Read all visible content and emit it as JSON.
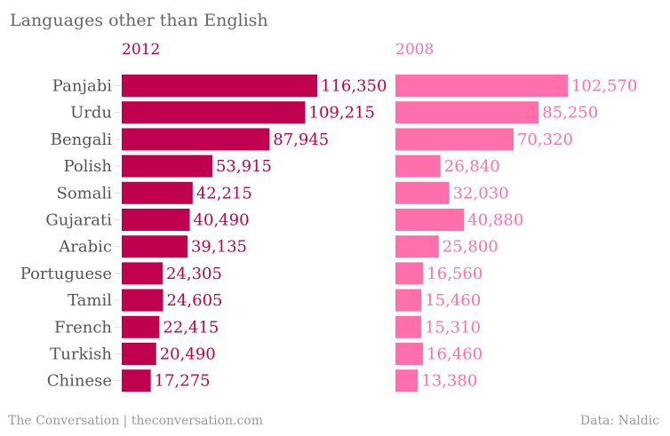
{
  "title": "Languages other than English",
  "footer": {
    "source_left": "The Conversation | theconversation.com",
    "source_right": "Data: Naldic"
  },
  "colors": {
    "series_2012": "#c0004f",
    "series_2008": "#ff6fab",
    "category_text": "#555555",
    "title_text": "#666666"
  },
  "chart_data": {
    "type": "bar",
    "orientation": "horizontal",
    "title": "Languages other than English",
    "categories": [
      "Panjabi",
      "Urdu",
      "Bengali",
      "Polish",
      "Somali",
      "Gujarati",
      "Arabic",
      "Portuguese",
      "Tamil",
      "French",
      "Turkish",
      "Chinese"
    ],
    "series": [
      {
        "name": "2012",
        "values": [
          116350,
          109215,
          87945,
          53915,
          42215,
          40490,
          39135,
          24305,
          24605,
          22415,
          20490,
          17275
        ],
        "labels": [
          "116,350",
          "109,215",
          "87,945",
          "53,915",
          "42,215",
          "40,490",
          "39,135",
          "24,305",
          "24,605",
          "22,415",
          "20,490",
          "17,275"
        ]
      },
      {
        "name": "2008",
        "values": [
          102570,
          85250,
          70320,
          26840,
          32030,
          40880,
          25800,
          16560,
          15460,
          15310,
          16460,
          13380
        ],
        "labels": [
          "102,570",
          "85,250",
          "70,320",
          "26,840",
          "32,030",
          "40,880",
          "25,800",
          "16,560",
          "15,460",
          "15,310",
          "16,460",
          "13,380"
        ]
      }
    ],
    "xlabel": "",
    "ylabel": "",
    "xlim": [
      0,
      116350
    ],
    "grid": false,
    "legend": "panel headers"
  }
}
